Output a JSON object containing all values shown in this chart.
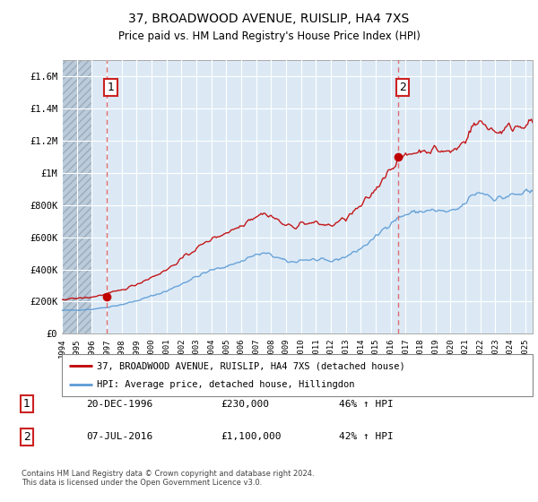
{
  "title": "37, BROADWOOD AVENUE, RUISLIP, HA4 7XS",
  "subtitle": "Price paid vs. HM Land Registry's House Price Index (HPI)",
  "legend_line1": "37, BROADWOOD AVENUE, RUISLIP, HA4 7XS (detached house)",
  "legend_line2": "HPI: Average price, detached house, Hillingdon",
  "annotation1_box": "1",
  "annotation1_date": "20-DEC-1996",
  "annotation1_price": "£230,000",
  "annotation1_hpi": "46% ↑ HPI",
  "annotation2_box": "2",
  "annotation2_date": "07-JUL-2016",
  "annotation2_price": "£1,100,000",
  "annotation2_hpi": "42% ↑ HPI",
  "footer": "Contains HM Land Registry data © Crown copyright and database right 2024.\nThis data is licensed under the Open Government Licence v3.0.",
  "hpi_color": "#5b9bd5",
  "price_color": "#c00000",
  "dot_color": "#c00000",
  "dashed_color": "#e06060",
  "chart_bg_color": "#dce9f5",
  "hatch_color": "#b8c8d8",
  "grid_color": "#ffffff",
  "ylim": [
    0,
    1700000
  ],
  "yticks": [
    0,
    200000,
    400000,
    600000,
    800000,
    1000000,
    1200000,
    1400000,
    1600000
  ],
  "ytick_labels": [
    "£0",
    "£200K",
    "£400K",
    "£600K",
    "£800K",
    "£1M",
    "£1.2M",
    "£1.4M",
    "£1.6M"
  ],
  "sale1_x": 1996.97,
  "sale1_y": 230000,
  "sale2_x": 2016.52,
  "sale2_y": 1100000,
  "xmin": 1994.0,
  "xmax": 2025.5,
  "hatch_xmin": 1994.0,
  "hatch_xmax": 1996.0
}
